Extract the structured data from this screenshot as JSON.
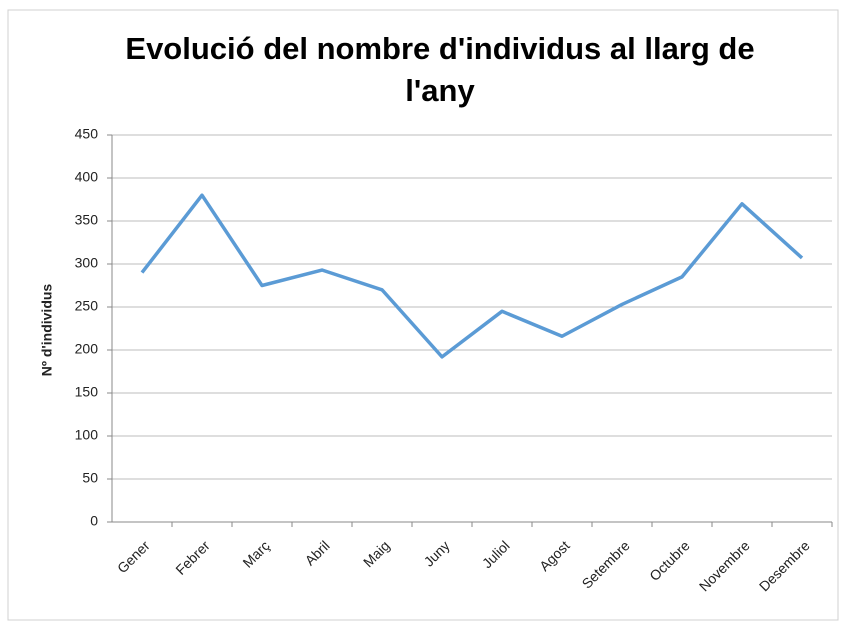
{
  "chart_data": {
    "type": "line",
    "title": "Evolució del nombre d'individus al llarg de l'any",
    "y_label": "Nº d'individus",
    "categories": [
      "Gener",
      "Febrer",
      "Març",
      "Abril",
      "Maig",
      "Juny",
      "Juliol",
      "Agost",
      "Setembre",
      "Octubre",
      "Novembre",
      "Desembre"
    ],
    "series": [
      {
        "name": "Nº d'individus",
        "color": "#5b9bd5",
        "values": [
          290,
          380,
          275,
          293,
          270,
          192,
          245,
          216,
          253,
          285,
          370,
          307
        ]
      }
    ],
    "ylim": [
      0,
      450
    ],
    "yticks": [
      0,
      50,
      100,
      150,
      200,
      250,
      300,
      350,
      400,
      450
    ],
    "grid": true
  }
}
